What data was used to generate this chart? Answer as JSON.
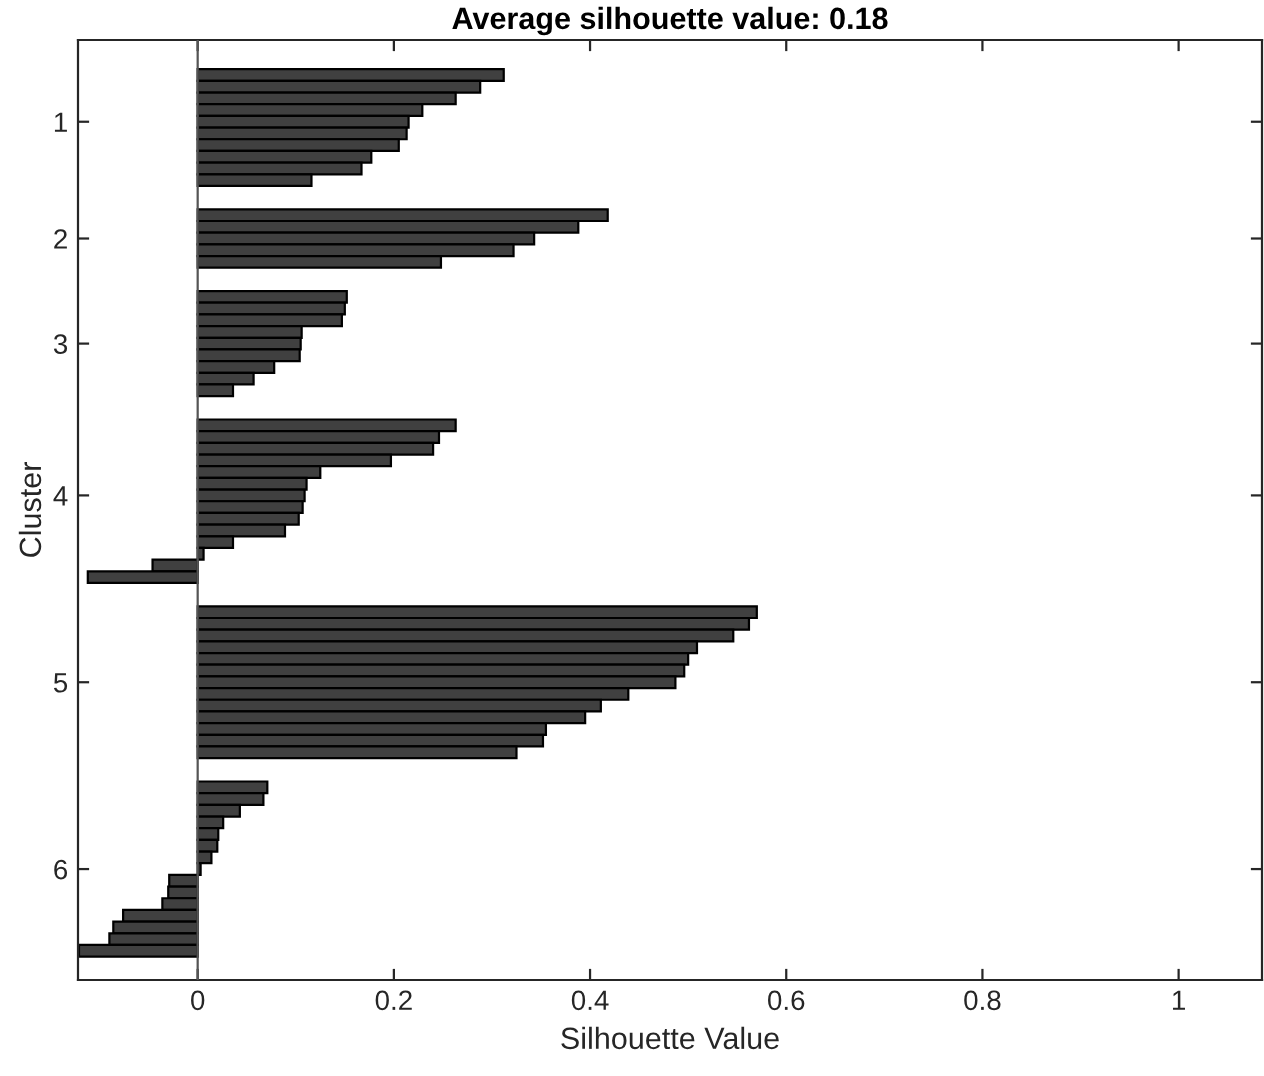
{
  "chart_data": {
    "type": "bar",
    "orientation": "horizontal",
    "title": "Average silhouette value: 0.18",
    "xlabel": "Silhouette Value",
    "ylabel": "Cluster",
    "categories": [
      null,
      null,
      null,
      null,
      "1",
      null,
      null,
      null,
      null,
      null,
      null,
      null,
      null,
      null,
      "2",
      null,
      null,
      null,
      null,
      null,
      null,
      null,
      null,
      "3",
      null,
      null,
      null,
      null,
      null,
      null,
      null,
      null,
      null,
      null,
      null,
      null,
      "4",
      null,
      null,
      null,
      null,
      null,
      null,
      null,
      null,
      null,
      null,
      null,
      null,
      null,
      null,
      null,
      "5",
      null,
      null,
      null,
      null,
      null,
      null,
      null,
      null,
      null,
      null,
      null,
      null,
      null,
      null,
      null,
      "6",
      null,
      null,
      null,
      null,
      null,
      null,
      null
    ],
    "values": [
      0.312,
      0.288,
      0.263,
      0.229,
      0.215,
      0.213,
      0.205,
      0.177,
      0.167,
      0.116,
      null,
      null,
      0.418,
      0.388,
      0.343,
      0.322,
      0.248,
      null,
      null,
      0.152,
      0.15,
      0.147,
      0.106,
      0.105,
      0.104,
      0.078,
      0.057,
      0.036,
      null,
      null,
      0.263,
      0.246,
      0.24,
      0.197,
      0.125,
      0.111,
      0.109,
      0.107,
      0.103,
      0.089,
      0.036,
      0.006,
      -0.046,
      -0.112,
      null,
      null,
      0.57,
      0.562,
      0.546,
      0.509,
      0.5,
      0.496,
      0.487,
      0.439,
      0.411,
      0.395,
      0.355,
      0.352,
      0.325,
      null,
      null,
      0.071,
      0.067,
      0.043,
      0.026,
      0.021,
      0.02,
      0.014,
      0.003,
      -0.029,
      -0.03,
      -0.036,
      -0.076,
      -0.086,
      -0.09,
      -0.121
    ],
    "color": "#404040",
    "xlim": [
      -0.122,
      1.085
    ],
    "xticks": [
      0,
      0.2,
      0.4,
      0.6,
      0.8,
      1
    ],
    "grid": false,
    "ref_lines": [
      {
        "axis": "x",
        "value": 0,
        "color": "#555555"
      }
    ]
  }
}
